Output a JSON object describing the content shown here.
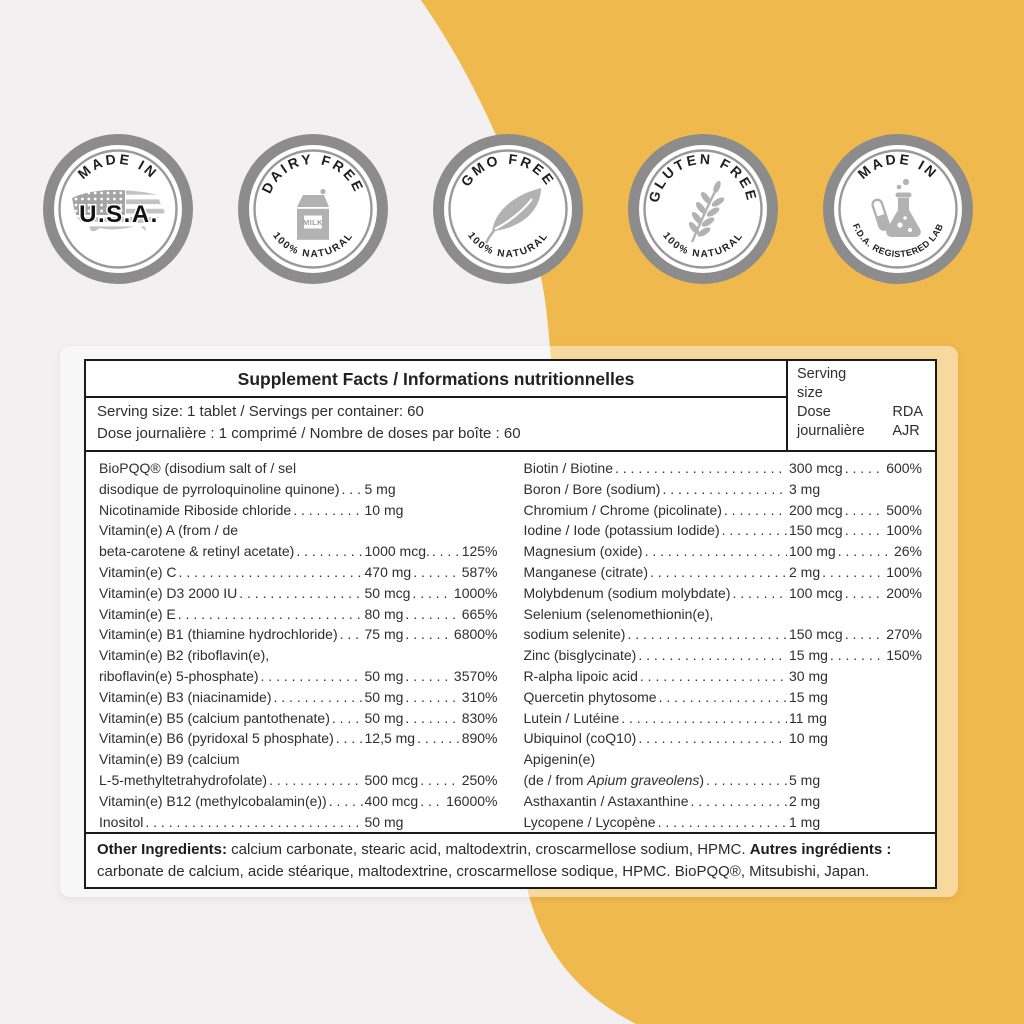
{
  "colors": {
    "accent_yellow": "#F0B94D",
    "page_bg": "#F2F0F1",
    "badge_ring": "#8C8C8C",
    "badge_ring_inner": "#999999",
    "badge_icon_gray": "#B2B2B2",
    "table_border": "#1A1A1A"
  },
  "badges": [
    {
      "id": "made-in-usa",
      "icon": "usa-map",
      "top_text": "MADE IN",
      "center_text": "U.S.A.",
      "bottom_text": ""
    },
    {
      "id": "dairy-free",
      "icon": "milk-carton",
      "top_text": "DAIRY FREE",
      "icon_label": "MILK",
      "bottom_text": "100% NATURAL"
    },
    {
      "id": "gmo-free",
      "icon": "leaf",
      "top_text": "GMO FREE",
      "bottom_text": "100% NATURAL"
    },
    {
      "id": "gluten-free",
      "icon": "wheat",
      "top_text": "GLUTEN FREE",
      "bottom_text": "100% NATURAL"
    },
    {
      "id": "fda-lab",
      "icon": "flask",
      "top_text": "MADE IN",
      "bottom_text": "F.D.A. REGISTERED LAB"
    }
  ],
  "panel": {
    "title": "Supplement Facts / Informations nutritionnelles",
    "serving_line_en": "Serving size: 1 tablet / Servings per container: 60",
    "serving_line_fr": "Dose journalière : 1 comprimé / Nombre de doses par boîte : 60",
    "col_header": {
      "en1": "Serving",
      "en2": "size",
      "fr1": "Dose",
      "fr2": "journalière",
      "rda": "RDA",
      "ajr": "AJR"
    }
  },
  "ingredients_left": [
    {
      "pre": "BioPQQ® (disodium salt of / sel",
      "name": "disodique de pyrroloquinoline quinone)",
      "amount": "5 mg",
      "pct": ""
    },
    {
      "name": "Nicotinamide Riboside chloride",
      "amount": "10 mg",
      "pct": ""
    },
    {
      "pre": "Vitamin(e) A (from / de",
      "name": "beta-carotene & retinyl acetate)",
      "amount": "1000 mcg.",
      "pct": "125%"
    },
    {
      "name": "Vitamin(e) C",
      "amount": "470 mg",
      "pct": "587%"
    },
    {
      "name": "Vitamin(e) D3 2000 IU",
      "amount": "50 mcg",
      "pct": "1000%"
    },
    {
      "name": "Vitamin(e) E",
      "amount": "80 mg",
      "pct": "665%"
    },
    {
      "name": "Vitamin(e) B1 (thiamine hydrochloride)",
      "amount": "75 mg",
      "pct": "6800%"
    },
    {
      "pre": "Vitamin(e) B2 (riboflavin(e),",
      "name": "riboflavin(e) 5-phosphate)",
      "amount": "50 mg",
      "pct": "3570%"
    },
    {
      "name": "Vitamin(e) B3 (niacinamide)",
      "amount": "50 mg",
      "pct": "310%"
    },
    {
      "name": "Vitamin(e) B5 (calcium pantothenate)",
      "amount": "50 mg",
      "pct": "830%"
    },
    {
      "name": "Vitamin(e) B6 (pyridoxal 5 phosphate)",
      "amount": "12,5 mg",
      "pct": "890%"
    },
    {
      "pre": "Vitamin(e) B9 (calcium",
      "name": "L-5-methyltetrahydrofolate)",
      "amount": "500 mcg",
      "pct": "250%"
    },
    {
      "name": "Vitamin(e) B12 (methylcobalamin(e))",
      "amount": "400 mcg",
      "pct": "16000%"
    },
    {
      "name": "Inositol",
      "amount": "50 mg",
      "pct": ""
    }
  ],
  "ingredients_right": [
    {
      "name": "Biotin / Biotine",
      "amount": "300 mcg",
      "pct": "600%"
    },
    {
      "name": "Boron / Bore (sodium)",
      "amount": "3 mg",
      "pct": ""
    },
    {
      "name": "Chromium / Chrome (picolinate)",
      "amount": "200 mcg",
      "pct": "500%"
    },
    {
      "name": "Iodine / Iode (potassium Iodide)",
      "amount": "150 mcg",
      "pct": "100%"
    },
    {
      "name": "Magnesium (oxide)",
      "amount": "100 mg",
      "pct": "26%"
    },
    {
      "name": "Manganese (citrate)",
      "amount": "2 mg",
      "pct": "100%"
    },
    {
      "name": "Molybdenum (sodium molybdate)",
      "amount": "100 mcg",
      "pct": "200%"
    },
    {
      "pre": "Selenium (selenomethionin(e),",
      "name": "sodium selenite)",
      "amount": "150 mcg",
      "pct": "270%"
    },
    {
      "name": "Zinc (bisglycinate)",
      "amount": "15 mg",
      "pct": "150%"
    },
    {
      "name": "R-alpha lipoic acid",
      "amount": "30 mg",
      "pct": ""
    },
    {
      "name": "Quercetin phytosome",
      "amount": "15 mg",
      "pct": ""
    },
    {
      "name": "Lutein / Lutéine",
      "amount": "11 mg",
      "pct": ""
    },
    {
      "name": "Ubiquinol (coQ10)",
      "amount": "10 mg",
      "pct": ""
    },
    {
      "pre": "Apigenin(e)",
      "name": "(de / from *Apium graveolens*)",
      "amount": "5 mg",
      "pct": ""
    },
    {
      "name": "Asthaxantin / Astaxanthine",
      "amount": "2 mg",
      "pct": ""
    },
    {
      "name": "Lycopene / Lycopène",
      "amount": "1 mg",
      "pct": ""
    }
  ],
  "other_ingredients": {
    "label_en": "Other Ingredients:",
    "text_en": " calcium carbonate, stearic acid, maltodextrin, croscarmellose sodium, HPMC. ",
    "label_fr": "Autres ingrédients :",
    "text_fr": " carbonate de calcium, acide stéarique, maltodextrine, croscarmellose sodique, HPMC. BioPQQ®, Mitsubishi, Japan."
  }
}
